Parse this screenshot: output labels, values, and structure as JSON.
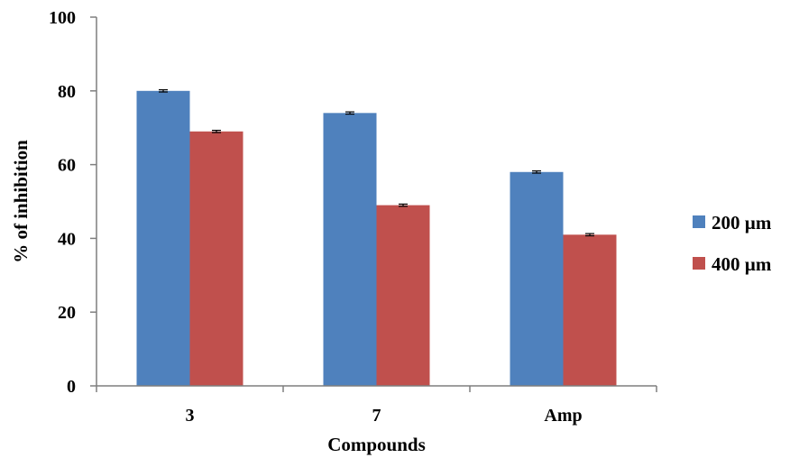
{
  "chart_data": {
    "type": "bar",
    "title": "",
    "xlabel": "Compounds",
    "ylabel": "% of inhibition",
    "categories": [
      "3",
      "7",
      "Amp"
    ],
    "series": [
      {
        "name": "200 µm",
        "values": [
          80,
          74,
          58
        ],
        "error": [
          0.3,
          0.3,
          0.3
        ],
        "color": "#4F81BD"
      },
      {
        "name": "400 µm",
        "values": [
          69,
          49,
          41
        ],
        "error": [
          0.3,
          0.3,
          0.3
        ],
        "color": "#C0504D"
      }
    ],
    "ylim": [
      0,
      100
    ],
    "yticks": [
      0,
      20,
      40,
      60,
      80,
      100
    ],
    "grid": false,
    "legend": "right"
  }
}
